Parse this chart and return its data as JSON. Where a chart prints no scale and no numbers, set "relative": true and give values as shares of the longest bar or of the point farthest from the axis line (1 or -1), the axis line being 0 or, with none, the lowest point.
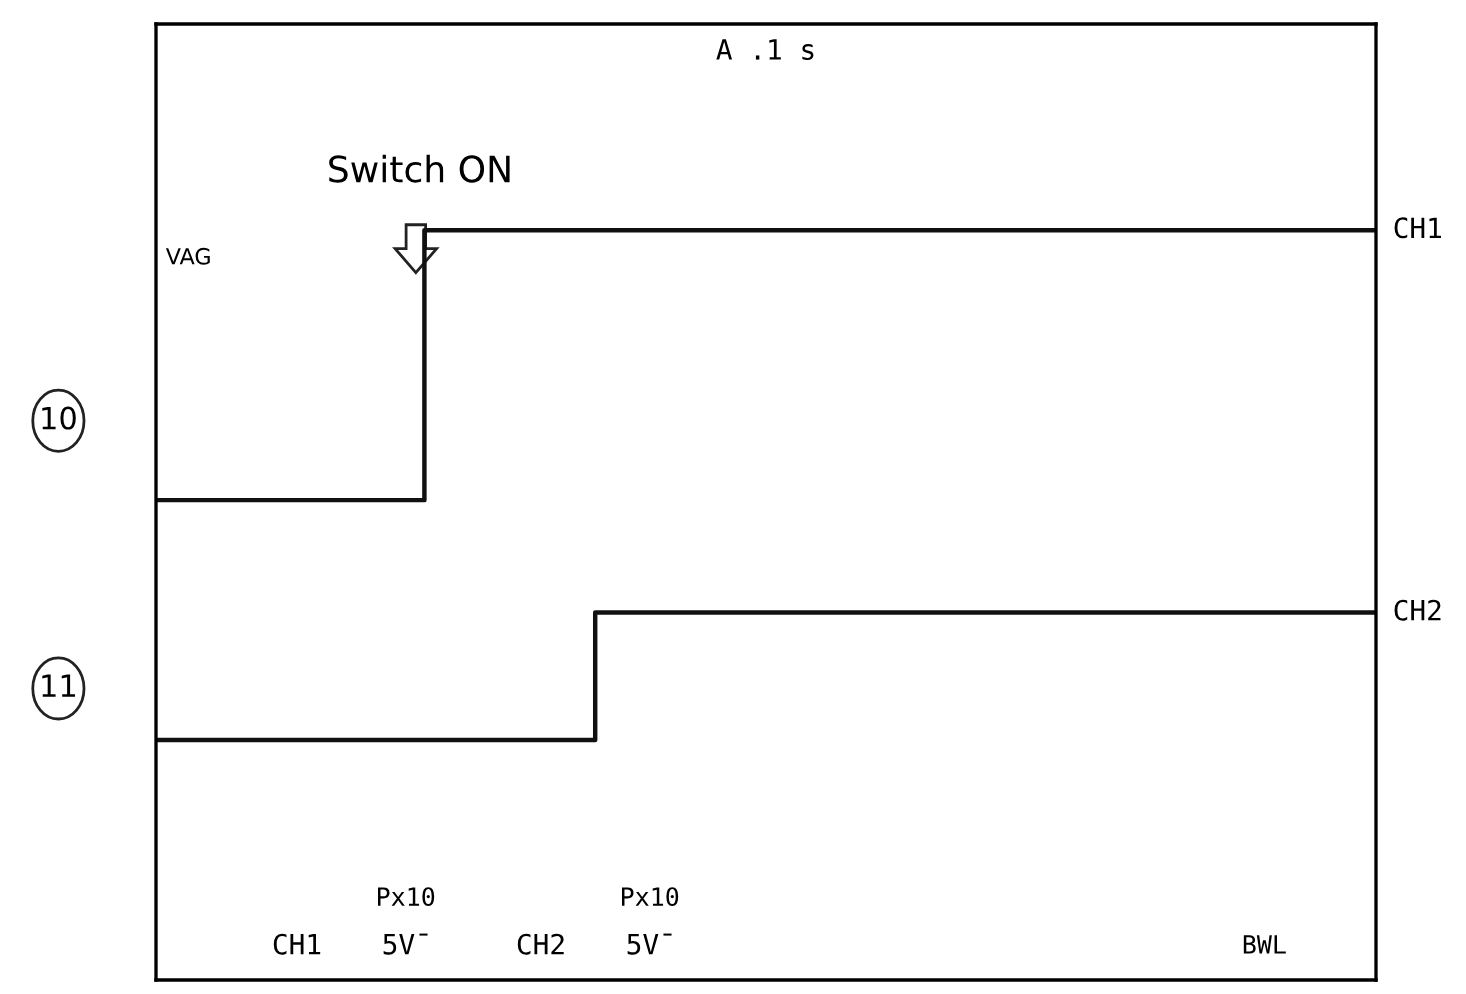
{
  "chart_data": {
    "type": "step",
    "relative": true,
    "title": "A .1 s",
    "categories": [
      null,
      null,
      null,
      null,
      null,
      null,
      null,
      null,
      null,
      null,
      null,
      null,
      null,
      null,
      null,
      null,
      null,
      null,
      null,
      null,
      null,
      null,
      null,
      null,
      null,
      null,
      null,
      null,
      null,
      null,
      null,
      null,
      null,
      null,
      null,
      null,
      null,
      null,
      null,
      null,
      null,
      null,
      null,
      null,
      null,
      null,
      null,
      null,
      null,
      null,
      null
    ],
    "series": [
      {
        "name": "CH1",
        "color": "#111111",
        "values": [
          0.64,
          0.64,
          0.64,
          0.64,
          0.64,
          0.64,
          0.64,
          0.64,
          0.64,
          0.64,
          0.64,
          1,
          1,
          1,
          1,
          1,
          1,
          1,
          1,
          1,
          1,
          1,
          1,
          1,
          1,
          1,
          1,
          1,
          1,
          1,
          1,
          1,
          1,
          1,
          1,
          1,
          1,
          1,
          1,
          1,
          1,
          1,
          1,
          1,
          1,
          1,
          1,
          1,
          1,
          1,
          1
        ]
      },
      {
        "name": "CH2",
        "color": "#111111",
        "values": [
          0.32,
          0.32,
          0.32,
          0.32,
          0.32,
          0.32,
          0.32,
          0.32,
          0.32,
          0.32,
          0.32,
          0.32,
          0.32,
          0.32,
          0.32,
          0.32,
          0.32,
          0.32,
          0.49,
          0.49,
          0.49,
          0.49,
          0.49,
          0.49,
          0.49,
          0.49,
          0.49,
          0.49,
          0.49,
          0.49,
          0.49,
          0.49,
          0.49,
          0.49,
          0.49,
          0.49,
          0.49,
          0.49,
          0.49,
          0.49,
          0.49,
          0.49,
          0.49,
          0.49,
          0.49,
          0.49,
          0.49,
          0.49,
          0.49,
          0.49,
          0.49
        ]
      }
    ],
    "annotations": [
      "Switch ON",
      "VAG",
      "10",
      "11",
      "CH1",
      "Px10",
      "5V̄",
      "CH2",
      "Px10",
      "5V̄",
      "BWL"
    ],
    "legend": false,
    "marker": "none",
    "line_style": "solid"
  }
}
